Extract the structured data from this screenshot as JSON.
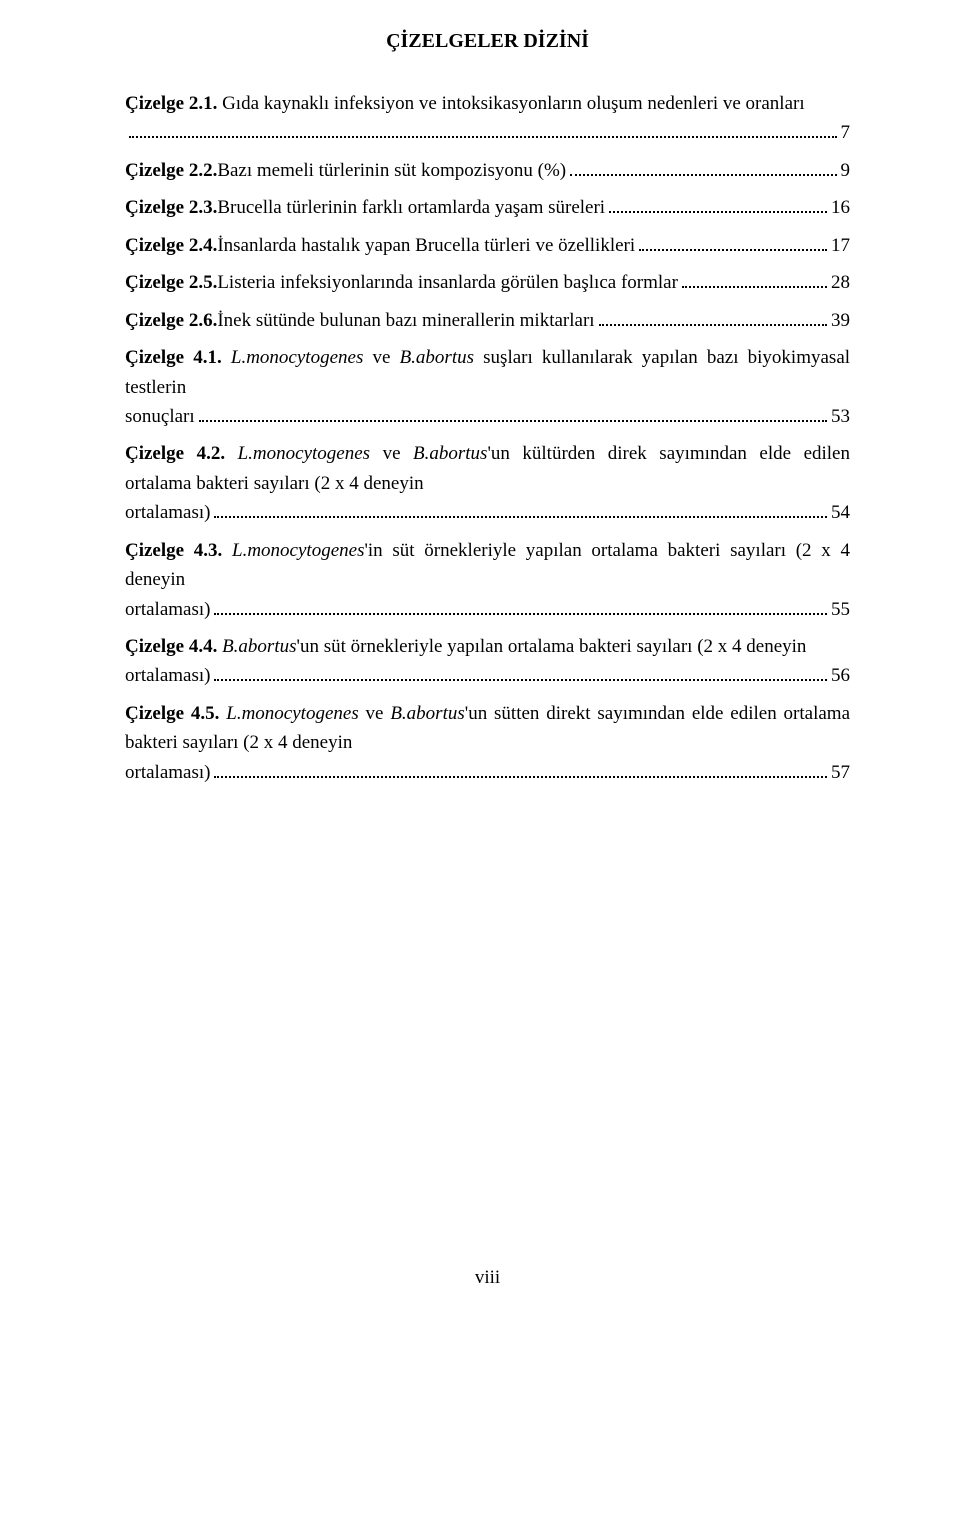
{
  "title": "ÇİZELGELER DİZİNİ",
  "footer": "viii",
  "entries": [
    {
      "label": "Çizelge 2.1.",
      "pre": "",
      "italic": "",
      "post": " Gıda kaynaklı infeksiyon ve intoksikasyonların oluşum nedenleri ve oranları",
      "tail": "",
      "page": "7"
    },
    {
      "label": "Çizelge 2.2.",
      "pre": "",
      "italic": "",
      "post": "",
      "tail": " Bazı memeli türlerinin süt kompozisyonu (%)",
      "page": "9"
    },
    {
      "label": "Çizelge 2.3.",
      "pre": "",
      "italic": "",
      "post": "",
      "tail": " Brucella türlerinin farklı ortamlarda yaşam süreleri",
      "page": "16"
    },
    {
      "label": "Çizelge 2.4.",
      "pre": "",
      "italic": "",
      "post": "",
      "tail": " İnsanlarda hastalık yapan Brucella türleri ve özellikleri",
      "page": "17"
    },
    {
      "label": "Çizelge 2.5.",
      "pre": "",
      "italic": "",
      "post": "",
      "tail": " Listeria infeksiyonlarında insanlarda görülen başlıca formlar",
      "page": "28"
    },
    {
      "label": "Çizelge 2.6.",
      "pre": "",
      "italic": "",
      "post": "",
      "tail": " İnek sütünde bulunan bazı minerallerin miktarları",
      "page": "39"
    },
    {
      "label": "Çizelge 4.1.",
      "pre": " ",
      "italic": "L.monocytogenes",
      "post": " ve ",
      "italic2": "B.abortus",
      "post2": " suşları kullanılarak yapılan bazı biyokimyasal testlerin",
      "tail": "sonuçları",
      "page": "53"
    },
    {
      "label": "Çizelge 4.2.",
      "pre": " ",
      "italic": "L.monocytogenes",
      "post": " ve ",
      "italic2": "B.abortus",
      "post2": "'un kültürden direk sayımından elde edilen ortalama bakteri sayıları (2 x 4 deneyin",
      "tail": "ortalaması)",
      "page": "54"
    },
    {
      "label": "Çizelge 4.3.",
      "pre": " ",
      "italic": "L.monocytogenes",
      "post": "'in süt örnekleriyle yapılan ortalama bakteri sayıları (2 x 4 deneyin",
      "tail": "ortalaması)",
      "page": "55"
    },
    {
      "label": "Çizelge 4.4.",
      "pre": " ",
      "italic": "B.abortus",
      "post": "'un süt örnekleriyle yapılan ortalama bakteri sayıları (2 x 4 deneyin",
      "tail": "ortalaması)",
      "page": "56"
    },
    {
      "label": "Çizelge 4.5.",
      "pre": " ",
      "italic": "L.monocytogenes",
      "post": " ve ",
      "italic2": "B.abortus",
      "post2": "'un sütten direkt sayımından elde edilen ortalama bakteri sayıları (2 x 4 deneyin",
      "tail": "ortalaması)",
      "page": "57"
    }
  ]
}
